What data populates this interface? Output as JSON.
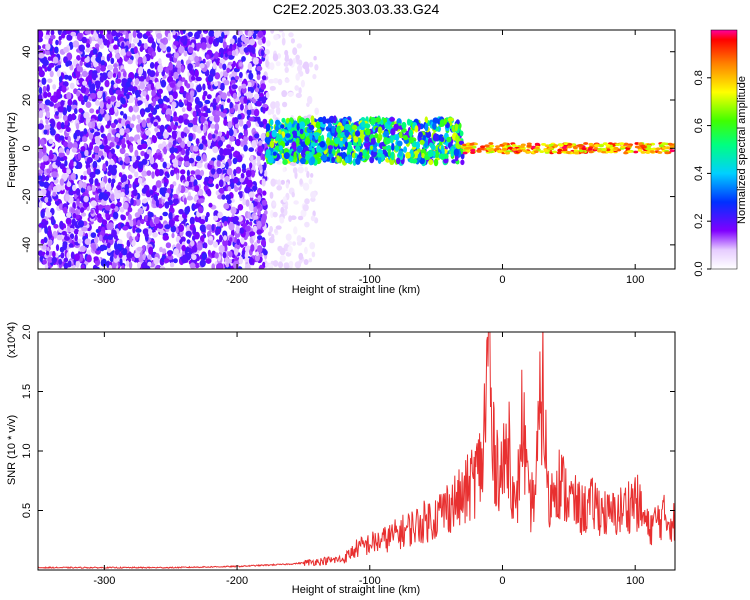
{
  "title": "C2E2.2025.303.03.33.G24",
  "chart_data": [
    {
      "type": "heatmap",
      "xlabel": "Height of straight line (km)",
      "ylabel": "Frequency (Hz)",
      "xlim": [
        -350,
        130
      ],
      "ylim": [
        -50,
        49
      ],
      "xticks": [
        -300,
        -200,
        -100,
        0,
        100
      ],
      "yticks": [
        -40,
        -20,
        0,
        20,
        40
      ],
      "colorbar": {
        "label": "Normalized spectral amplitude",
        "range": [
          0,
          1
        ],
        "ticks": [
          0.0,
          0.2,
          0.4,
          0.6,
          0.8
        ]
      },
      "features": [
        {
          "x_range": [
            -350,
            -178
          ],
          "y_range": [
            -50,
            49
          ],
          "level": 0.15
        },
        {
          "x_range": [
            -178,
            -140
          ],
          "y_range": [
            -50,
            49
          ],
          "level": 0.05
        },
        {
          "x_range": [
            -178,
            -30
          ],
          "y_range": [
            -6,
            12
          ],
          "level": 0.35
        },
        {
          "x_range": [
            -30,
            130
          ],
          "y_range": [
            -2,
            2
          ],
          "level": 0.9
        }
      ]
    },
    {
      "type": "line",
      "xlabel": "Height of straight line (km)",
      "ylabel": "SNR (10 * v/v)",
      "y_multiplier": "(x10^4)",
      "xlim": [
        -350,
        130
      ],
      "ylim": [
        0,
        2.0
      ],
      "xticks": [
        -300,
        -200,
        -100,
        0,
        100
      ],
      "yticks": [
        0.5,
        1.0,
        1.5,
        2.0
      ],
      "series": [
        {
          "color": "#e83030",
          "x": [
            -350,
            -300,
            -250,
            -200,
            -180,
            -160,
            -140,
            -120,
            -110,
            -100,
            -90,
            -80,
            -70,
            -60,
            -50,
            -40,
            -30,
            -20,
            -15,
            -10,
            -8,
            -5,
            0,
            5,
            10,
            15,
            20,
            25,
            30,
            35,
            40,
            50,
            60,
            70,
            80,
            90,
            100,
            110,
            120,
            130
          ],
          "values": [
            0.02,
            0.02,
            0.02,
            0.03,
            0.04,
            0.05,
            0.07,
            0.09,
            0.18,
            0.22,
            0.25,
            0.3,
            0.35,
            0.4,
            0.45,
            0.55,
            0.6,
            0.8,
            0.9,
            2.0,
            1.0,
            0.95,
            0.8,
            1.1,
            0.4,
            1.3,
            0.5,
            0.7,
            1.6,
            0.5,
            0.8,
            0.6,
            0.5,
            0.55,
            0.45,
            0.5,
            0.6,
            0.35,
            0.45,
            0.4
          ]
        }
      ]
    }
  ]
}
